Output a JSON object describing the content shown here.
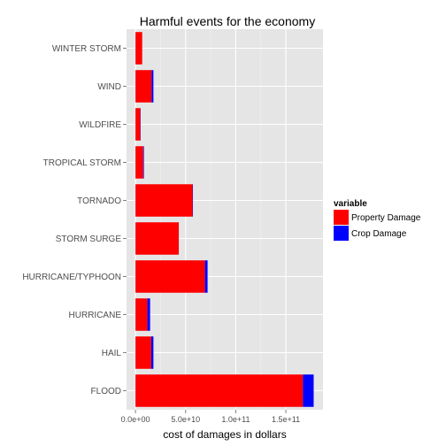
{
  "chart_data": {
    "type": "bar",
    "orientation": "horizontal",
    "stacked": true,
    "title": "Harmful events for the economy",
    "xlabel": "cost of damages in dollars",
    "ylabel": "",
    "categories": [
      "FLOOD",
      "HAIL",
      "HURRICANE",
      "HURRICANE/TYPHOON",
      "STORM SURGE",
      "TORNADO",
      "TROPICAL STORM",
      "WILDFIRE",
      "WIND",
      "WINTER STORM"
    ],
    "series": [
      {
        "name": "Property Damage",
        "color": "#ff0000",
        "values": [
          167000000000.0,
          15700000000.0,
          11900000000.0,
          69300000000.0,
          43200000000.0,
          56900000000.0,
          7700000000.0,
          4800000000.0,
          16100000000.0,
          6700000000.0
        ]
      },
      {
        "name": "Crop Damage",
        "color": "#0000ff",
        "values": [
          10700000000.0,
          2200000000.0,
          2700000000.0,
          2600000000.0,
          0,
          400000000.0,
          700000000.0,
          300000000.0,
          1800000000.0,
          0
        ]
      }
    ],
    "xlim": [
      -8900000000.0,
      187000000000.0
    ],
    "xticks": [
      0,
      50000000000.0,
      100000000000.0,
      150000000000.0
    ],
    "xtick_labels": [
      "0.0e+00",
      "5.0e+10",
      "1.0e+11",
      "1.5e+11"
    ],
    "grid": true,
    "legend": {
      "title": "variable",
      "position": "right"
    }
  }
}
